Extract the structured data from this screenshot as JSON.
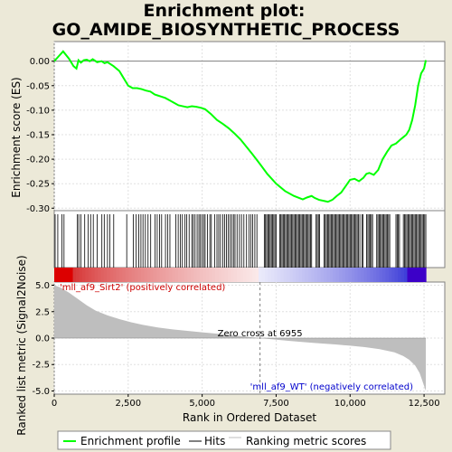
{
  "chart_data": {
    "type": "line",
    "title_line1": "Enrichment plot:",
    "title_line2": "GO_AMIDE_BIOSYNTHETIC_PROCESS",
    "es_panel": {
      "ylabel": "Enrichment score (ES)",
      "ylim": [
        -0.305,
        0.04
      ],
      "yticks": [
        0.0,
        -0.05,
        -0.1,
        -0.15,
        -0.2,
        -0.25,
        -0.3
      ],
      "ytick_labels": [
        "0.00",
        "-0.05",
        "-0.10",
        "-0.15",
        "-0.20",
        "-0.25",
        "-0.30"
      ],
      "series": [
        {
          "name": "Enrichment profile",
          "color": "#00ff00",
          "x": [
            0,
            150,
            300,
            500,
            650,
            750,
            820,
            900,
            1000,
            1100,
            1200,
            1300,
            1450,
            1600,
            1700,
            1800,
            1900,
            2000,
            2100,
            2200,
            2300,
            2400,
            2500,
            2650,
            2800,
            2950,
            3100,
            3250,
            3400,
            3500,
            3600,
            3750,
            3900,
            4050,
            4200,
            4350,
            4500,
            4650,
            4800,
            4950,
            5100,
            5300,
            5500,
            5700,
            5900,
            6100,
            6300,
            6500,
            6700,
            6955,
            7200,
            7500,
            7800,
            8100,
            8400,
            8550,
            8700,
            8800,
            8950,
            9100,
            9250,
            9400,
            9550,
            9700,
            9850,
            10000,
            10150,
            10300,
            10450,
            10550,
            10650,
            10800,
            10950,
            11100,
            11250,
            11400,
            11550,
            11700,
            11800,
            11900,
            12000,
            12100,
            12200,
            12300,
            12400,
            12500,
            12560
          ],
          "y": [
            0.0,
            0.01,
            0.02,
            0.005,
            -0.01,
            -0.015,
            0.002,
            -0.003,
            0.002,
            0.003,
            0.0,
            0.004,
            -0.002,
            0.0,
            -0.004,
            -0.002,
            -0.006,
            -0.01,
            -0.015,
            -0.02,
            -0.03,
            -0.04,
            -0.05,
            -0.055,
            -0.055,
            -0.057,
            -0.06,
            -0.062,
            -0.068,
            -0.07,
            -0.072,
            -0.075,
            -0.08,
            -0.085,
            -0.09,
            -0.092,
            -0.094,
            -0.092,
            -0.093,
            -0.095,
            -0.098,
            -0.108,
            -0.12,
            -0.128,
            -0.137,
            -0.148,
            -0.16,
            -0.175,
            -0.19,
            -0.21,
            -0.23,
            -0.25,
            -0.265,
            -0.275,
            -0.282,
            -0.278,
            -0.275,
            -0.279,
            -0.283,
            -0.285,
            -0.287,
            -0.283,
            -0.275,
            -0.268,
            -0.255,
            -0.242,
            -0.24,
            -0.245,
            -0.238,
            -0.23,
            -0.228,
            -0.232,
            -0.222,
            -0.2,
            -0.185,
            -0.172,
            -0.168,
            -0.16,
            -0.155,
            -0.15,
            -0.14,
            -0.12,
            -0.09,
            -0.05,
            -0.025,
            -0.015,
            0.002
          ]
        }
      ]
    },
    "hits": {
      "name": "Hits",
      "color": "#000000",
      "positions": [
        30,
        120,
        260,
        330,
        780,
        830,
        900,
        1030,
        1150,
        1230,
        1320,
        1450,
        1610,
        1690,
        1800,
        1880,
        2010,
        2450,
        2670,
        2770,
        2860,
        2930,
        3000,
        3080,
        3170,
        3260,
        3410,
        3480,
        3560,
        3630,
        3760,
        3830,
        3910,
        4110,
        4190,
        4260,
        4330,
        4420,
        4480,
        4560,
        4650,
        4700,
        4760,
        4830,
        4890,
        4940,
        5000,
        5050,
        5100,
        5180,
        5260,
        5310,
        5420,
        5500,
        5560,
        5620,
        5700,
        5760,
        5820,
        5880,
        5940,
        6000,
        6060,
        6110,
        6180,
        6260,
        6330,
        6410,
        6500,
        6580,
        6650,
        6710,
        6780,
        6850,
        7100,
        7140,
        7180,
        7220,
        7260,
        7300,
        7340,
        7380,
        7420,
        7460,
        7500,
        7620,
        7660,
        7700,
        7740,
        7780,
        7820,
        7860,
        7900,
        7940,
        7980,
        8020,
        8060,
        8100,
        8140,
        8180,
        8220,
        8260,
        8300,
        8340,
        8380,
        8420,
        8460,
        8500,
        8540,
        8580,
        8620,
        8660,
        8700,
        8850,
        8890,
        8930,
        8970,
        9120,
        9160,
        9200,
        9240,
        9280,
        9320,
        9360,
        9400,
        9440,
        9480,
        9520,
        9560,
        9600,
        9640,
        9680,
        9720,
        9760,
        9800,
        9840,
        9880,
        9920,
        9960,
        10000,
        10040,
        10080,
        10120,
        10160,
        10200,
        10240,
        10280,
        10330,
        10400,
        10440,
        10560,
        10600,
        10640,
        10680,
        10720,
        10760,
        10900,
        10940,
        10980,
        11020,
        11060,
        11100,
        11140,
        11180,
        11220,
        11260,
        11300,
        11340,
        11550,
        11590,
        11630,
        11670,
        11800,
        11840,
        11880,
        11920,
        11960,
        12000,
        12040,
        12080,
        12120,
        12160,
        12200,
        12240,
        12280,
        12320,
        12360,
        12400,
        12440,
        12480,
        12520,
        12560
      ]
    },
    "ranking_metric": {
      "name": "Ranking metric scores",
      "color": "#bebebe",
      "ylabel": "Ranked list metric (Signal2Noise)",
      "ylim": [
        -5.3,
        5.3
      ],
      "yticks": [
        5.0,
        2.5,
        0.0,
        -2.5,
        -5.0
      ],
      "ytick_labels": [
        "5.0",
        "2.5",
        "0.0",
        "-2.5",
        "-5.0"
      ],
      "x": [
        0,
        200,
        500,
        800,
        1100,
        1400,
        1800,
        2200,
        2600,
        3000,
        3500,
        4000,
        4500,
        5000,
        5500,
        6000,
        6500,
        6955,
        7500,
        8000,
        8500,
        9000,
        9500,
        10000,
        10500,
        11000,
        11500,
        11800,
        12000,
        12200,
        12350,
        12450,
        12560
      ],
      "y": [
        5.0,
        4.8,
        4.3,
        3.7,
        3.1,
        2.6,
        2.15,
        1.8,
        1.5,
        1.25,
        1.0,
        0.82,
        0.68,
        0.55,
        0.42,
        0.28,
        0.13,
        0.0,
        -0.15,
        -0.28,
        -0.4,
        -0.5,
        -0.6,
        -0.72,
        -0.86,
        -1.05,
        -1.35,
        -1.7,
        -2.05,
        -2.6,
        -3.3,
        -4.1,
        -5.0
      ]
    },
    "xlabel": "Rank in Ordered Dataset",
    "xlim": [
      0,
      13200
    ],
    "xticks": [
      0,
      2500,
      5000,
      7500,
      10000,
      12500
    ],
    "xtick_labels": [
      "0",
      "2,500",
      "5,000",
      "7,500",
      "10,000",
      "12,500"
    ],
    "zero_cross": 6955,
    "zero_cross_label": "Zero cross at 6955",
    "pos_label": "'mll_af9_Sirt2' (positively correlated)",
    "neg_label": "'mll_af9_WT' (negatively correlated)",
    "pos_color": "#cc0000",
    "neg_color": "#0000cc",
    "n_genes": 12560,
    "legend": {
      "placement": "bottom",
      "items": [
        "Enrichment profile",
        "Hits",
        "Ranking metric scores"
      ]
    }
  }
}
